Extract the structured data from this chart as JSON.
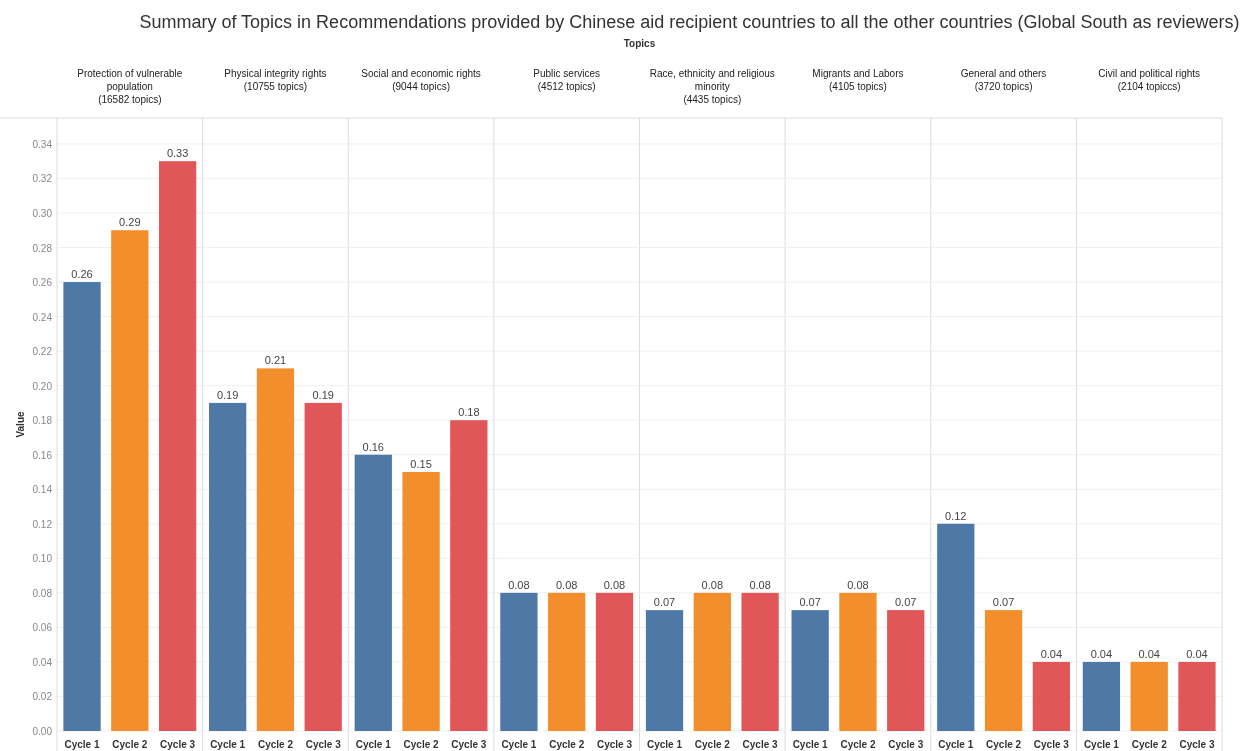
{
  "chart_data": [
    {
      "type": "bar",
      "title": "Protection of vulnerable population",
      "subtitle": "(16582 topics)",
      "ylabel": "Value",
      "annotations": [
        "Summary of Topics in Recommendations provided by Chinese aid recipient countries to all the other countries (Global South as reviewers)",
        "Topics"
      ],
      "categories": [
        "Cycle 1",
        "Cycle 2",
        "Cycle 3"
      ],
      "values": [
        0.26,
        0.29,
        0.33
      ],
      "colors": [
        "#4e79a7",
        "#f28e2b",
        "#e15759"
      ],
      "data_labels": true,
      "grid": "y",
      "ylim": [
        0,
        0.355
      ],
      "yticks": [
        {
          "value": 0,
          "label": "0.00"
        },
        {
          "value": 0.02,
          "label": "0.02"
        },
        {
          "value": 0.04,
          "label": "0.04"
        },
        {
          "value": 0.06,
          "label": "0.06"
        },
        {
          "value": 0.08,
          "label": "0.08"
        },
        {
          "value": 0.1,
          "label": "0.10"
        },
        {
          "value": 0.12,
          "label": "0.12"
        },
        {
          "value": 0.14,
          "label": "0.14"
        },
        {
          "value": 0.16,
          "label": "0.16"
        },
        {
          "value": 0.18,
          "label": "0.18"
        },
        {
          "value": 0.2,
          "label": "0.20"
        },
        {
          "value": 0.22,
          "label": "0.22"
        },
        {
          "value": 0.24,
          "label": "0.24"
        },
        {
          "value": 0.26,
          "label": "0.26"
        },
        {
          "value": 0.28,
          "label": "0.28"
        },
        {
          "value": 0.3,
          "label": "0.30"
        },
        {
          "value": 0.32,
          "label": "0.32"
        },
        {
          "value": 0.34,
          "label": "0.34"
        }
      ]
    },
    {
      "type": "bar",
      "title": "Physical integrity rights",
      "subtitle": "(10755 topics)",
      "categories": [
        "Cycle 1",
        "Cycle 2",
        "Cycle 3"
      ],
      "values": [
        0.19,
        0.21,
        0.19
      ],
      "colors": [
        "#4e79a7",
        "#f28e2b",
        "#e15759"
      ],
      "data_labels": true,
      "grid": "y",
      "tick_labels": "x",
      "ylim": [
        0,
        0.355
      ],
      "yticks": [
        0,
        0.02,
        0.04,
        0.06,
        0.08,
        0.1,
        0.12,
        0.14,
        0.16,
        0.18,
        0.2,
        0.22,
        0.24,
        0.26,
        0.28,
        0.3,
        0.32,
        0.34
      ]
    },
    {
      "type": "bar",
      "title": "Social and economic rights",
      "subtitle": "(9044 topics)",
      "categories": [
        "Cycle 1",
        "Cycle 2",
        "Cycle 3"
      ],
      "values": [
        0.16,
        0.15,
        0.18
      ],
      "colors": [
        "#4e79a7",
        "#f28e2b",
        "#e15759"
      ],
      "data_labels": true,
      "grid": "y",
      "tick_labels": "x",
      "ylim": [
        0,
        0.355
      ],
      "yticks": [
        0,
        0.02,
        0.04,
        0.06,
        0.08,
        0.1,
        0.12,
        0.14,
        0.16,
        0.18,
        0.2,
        0.22,
        0.24,
        0.26,
        0.28,
        0.3,
        0.32,
        0.34
      ]
    },
    {
      "type": "bar",
      "title": "Public services",
      "subtitle": "(4512 topics)",
      "categories": [
        "Cycle 1",
        "Cycle 2",
        "Cycle 3"
      ],
      "values": [
        0.08,
        0.08,
        0.08
      ],
      "colors": [
        "#4e79a7",
        "#f28e2b",
        "#e15759"
      ],
      "data_labels": true,
      "grid": "y",
      "tick_labels": "x",
      "ylim": [
        0,
        0.355
      ],
      "yticks": [
        0,
        0.02,
        0.04,
        0.06,
        0.08,
        0.1,
        0.12,
        0.14,
        0.16,
        0.18,
        0.2,
        0.22,
        0.24,
        0.26,
        0.28,
        0.3,
        0.32,
        0.34
      ]
    },
    {
      "type": "bar",
      "title": "Race, ethnicity and religious minority",
      "subtitle": "(4435 topics)",
      "categories": [
        "Cycle 1",
        "Cycle 2",
        "Cycle 3"
      ],
      "values": [
        0.07,
        0.08,
        0.08
      ],
      "colors": [
        "#4e79a7",
        "#f28e2b",
        "#e15759"
      ],
      "data_labels": true,
      "grid": "y",
      "tick_labels": "x",
      "ylim": [
        0,
        0.355
      ],
      "yticks": [
        0,
        0.02,
        0.04,
        0.06,
        0.08,
        0.1,
        0.12,
        0.14,
        0.16,
        0.18,
        0.2,
        0.22,
        0.24,
        0.26,
        0.28,
        0.3,
        0.32,
        0.34
      ]
    },
    {
      "type": "bar",
      "title": "Migrants and Labors",
      "subtitle": "(4105 topics)",
      "categories": [
        "Cycle 1",
        "Cycle 2",
        "Cycle 3"
      ],
      "values": [
        0.07,
        0.08,
        0.07
      ],
      "colors": [
        "#4e79a7",
        "#f28e2b",
        "#e15759"
      ],
      "data_labels": true,
      "grid": "y",
      "tick_labels": "x",
      "ylim": [
        0,
        0.355
      ],
      "yticks": [
        0,
        0.02,
        0.04,
        0.06,
        0.08,
        0.1,
        0.12,
        0.14,
        0.16,
        0.18,
        0.2,
        0.22,
        0.24,
        0.26,
        0.28,
        0.3,
        0.32,
        0.34
      ]
    },
    {
      "type": "bar",
      "title": "General and others",
      "subtitle": "(3720 topics)",
      "categories": [
        "Cycle 1",
        "Cycle 2",
        "Cycle 3"
      ],
      "values": [
        0.12,
        0.07,
        0.04
      ],
      "colors": [
        "#4e79a7",
        "#f28e2b",
        "#e15759"
      ],
      "data_labels": true,
      "grid": "y",
      "tick_labels": "x",
      "ylim": [
        0,
        0.355
      ],
      "yticks": [
        0,
        0.02,
        0.04,
        0.06,
        0.08,
        0.1,
        0.12,
        0.14,
        0.16,
        0.18,
        0.2,
        0.22,
        0.24,
        0.26,
        0.28,
        0.3,
        0.32,
        0.34
      ]
    },
    {
      "type": "bar",
      "title": "Civil and political rights",
      "subtitle": "(2104 topiccs)",
      "categories": [
        "Cycle 1",
        "Cycle 2",
        "Cycle 3"
      ],
      "values": [
        0.04,
        0.04,
        0.04
      ],
      "colors": [
        "#4e79a7",
        "#f28e2b",
        "#e15759"
      ],
      "data_labels": true,
      "grid": "y",
      "tick_labels": "x",
      "ylim": [
        0,
        0.355
      ],
      "yticks": [
        0,
        0.02,
        0.04,
        0.06,
        0.08,
        0.1,
        0.12,
        0.14,
        0.16,
        0.18,
        0.2,
        0.22,
        0.24,
        0.26,
        0.28,
        0.3,
        0.32,
        0.34
      ]
    }
  ]
}
